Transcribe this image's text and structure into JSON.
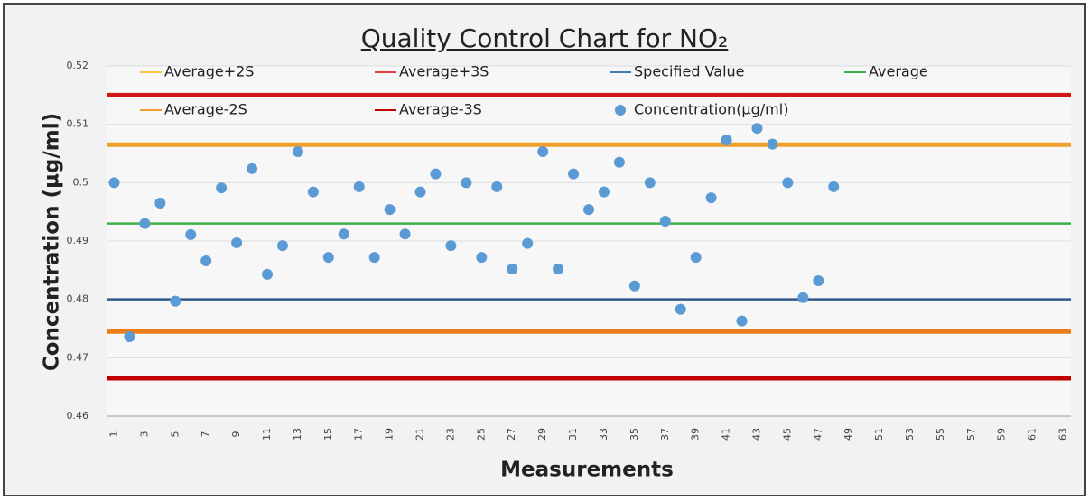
{
  "chart_data": {
    "type": "scatter",
    "title": "Quality Control Chart for NO₂",
    "xlabel": "Measurements",
    "ylabel": "Concentration (µg/ml)",
    "categories": [
      "1",
      null,
      "3",
      null,
      "5",
      null,
      "7",
      null,
      "9",
      null,
      "11",
      null,
      "13",
      null,
      "15",
      null,
      "17",
      null,
      "19",
      null,
      "21",
      null,
      "23",
      null,
      "25",
      null,
      "27",
      null,
      "29",
      null,
      "31",
      null,
      "33",
      null,
      "35",
      null,
      "37",
      null,
      "39",
      null,
      "41",
      null,
      "43",
      null,
      "45",
      null,
      "47",
      null,
      "49",
      null,
      "51",
      null,
      "53",
      null,
      "55",
      null,
      "57",
      null,
      "59",
      null,
      "61",
      null,
      "63"
    ],
    "ylim": [
      0.46,
      0.52
    ],
    "yticks": [
      0.46,
      0.47,
      0.48,
      0.49,
      0.5,
      0.51,
      0.52
    ],
    "grid": true,
    "reference_lines": [
      {
        "name": "Average+2S",
        "color": "#f0a02a",
        "legend_color": "#f5c542",
        "value": 0.5065
      },
      {
        "name": "Average+3S",
        "color": "#d01818",
        "legend_color": "#e04040",
        "value": 0.515
      },
      {
        "name": "Specified Value",
        "color": "#2e5a8a",
        "legend_color": "#4a78b0",
        "value": 0.48
      },
      {
        "name": "Average",
        "color": "#3cb04a",
        "legend_color": "#3cb04a",
        "value": 0.493
      },
      {
        "name": "Average-2S",
        "color": "#ed7d1a",
        "legend_color": "#f0a02a",
        "value": 0.4745
      },
      {
        "name": "Average-3S",
        "color": "#c00000",
        "legend_color": "#c00000",
        "value": 0.4665
      }
    ],
    "series": [
      {
        "name": "Concentration(µg/ml)",
        "color": "#5b9bd5",
        "values": [
          0.5,
          0.4736,
          0.493,
          0.4965,
          0.4797,
          0.4911,
          0.4866,
          0.4991,
          0.4897,
          0.5024,
          0.4843,
          0.4892,
          0.5053,
          0.4984,
          0.4872,
          0.4912,
          0.4993,
          0.4872,
          0.4954,
          0.4912,
          0.4984,
          0.5015,
          0.4892,
          0.5,
          0.4872,
          0.4993,
          0.4852,
          0.4896,
          0.5053,
          0.4852,
          0.5015,
          0.4954,
          0.4984,
          0.5035,
          0.4823,
          0.5,
          0.4934,
          0.4783,
          0.4872,
          0.4974,
          0.5073,
          0.4763,
          0.5093,
          0.5066,
          0.5,
          0.4803,
          0.4832,
          0.4993,
          null,
          null,
          null,
          null,
          null,
          null,
          null,
          null,
          null,
          null,
          null,
          null,
          null,
          null,
          null
        ]
      }
    ]
  }
}
